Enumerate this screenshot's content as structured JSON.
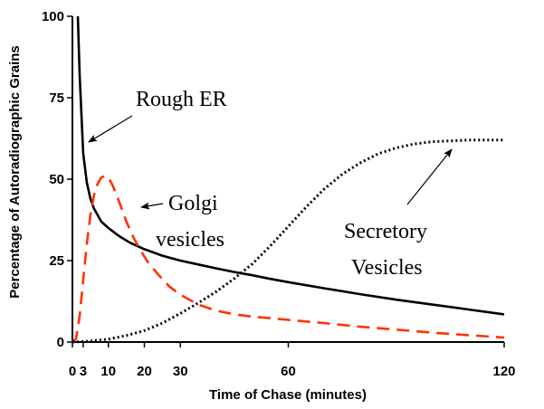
{
  "chart_data": {
    "type": "line",
    "xlabel": "Time of Chase (minutes)",
    "ylabel": "Percentage of Autoradiographic Grains",
    "xlim": [
      0,
      120
    ],
    "ylim": [
      0,
      100
    ],
    "x_ticks": [
      0,
      3,
      10,
      20,
      30,
      60,
      120
    ],
    "y_ticks": [
      0,
      25,
      50,
      75,
      100
    ],
    "grid": false,
    "legend": "none",
    "series": [
      {
        "name": "Rough ER",
        "color": "#000000",
        "style": "solid",
        "x": [
          1.5,
          2,
          3,
          4,
          5,
          6,
          8,
          10,
          13,
          16,
          20,
          25,
          30,
          35,
          40,
          45,
          50,
          55,
          60,
          70,
          80,
          90,
          100,
          110,
          120
        ],
        "y": [
          100,
          82,
          58,
          49,
          44,
          41,
          37,
          35,
          32.5,
          30.5,
          28.5,
          26.5,
          25,
          23.8,
          22.6,
          21.5,
          20.5,
          19.4,
          18.4,
          16.5,
          14.7,
          13,
          11.5,
          10,
          8.5
        ]
      },
      {
        "name": "Golgi vesicles",
        "color": "#ff3300",
        "style": "dashed",
        "x": [
          0,
          1,
          2,
          3,
          4,
          5,
          6,
          7,
          8,
          9,
          10,
          11,
          12,
          13,
          14,
          15,
          17,
          19,
          21,
          24,
          27,
          30,
          35,
          40,
          45,
          50,
          60,
          70,
          80,
          90,
          100,
          110,
          120
        ],
        "y": [
          0,
          1,
          8,
          19,
          30,
          39,
          45,
          48.5,
          50.5,
          51,
          50.5,
          48.5,
          46,
          43,
          40,
          37,
          32,
          28,
          24.5,
          20.5,
          17,
          14.5,
          11.5,
          9.6,
          8.5,
          7.8,
          6.8,
          5.8,
          4.7,
          3.8,
          2.9,
          2.1,
          1.4
        ]
      },
      {
        "name": "Secretory Vesicles",
        "color": "#000000",
        "style": "dotted",
        "x": [
          0,
          5,
          10,
          15,
          20,
          25,
          30,
          35,
          40,
          45,
          50,
          55,
          60,
          65,
          70,
          75,
          80,
          85,
          90,
          95,
          100,
          110,
          120
        ],
        "y": [
          0,
          0.3,
          0.9,
          2,
          3.5,
          5.8,
          8.8,
          12,
          15.5,
          19.5,
          24,
          29.5,
          35.5,
          41.5,
          47,
          51.5,
          55,
          57.8,
          59.6,
          60.8,
          61.5,
          62,
          62
        ]
      }
    ],
    "annotations": [
      {
        "text": "Rough ER",
        "lines": [
          "Rough ER"
        ]
      },
      {
        "text": "Golgi vesicles",
        "lines": [
          "Golgi",
          "vesicles"
        ]
      },
      {
        "text": "Secretory Vesicles",
        "lines": [
          "Secretory",
          "Vesicles"
        ]
      }
    ]
  }
}
